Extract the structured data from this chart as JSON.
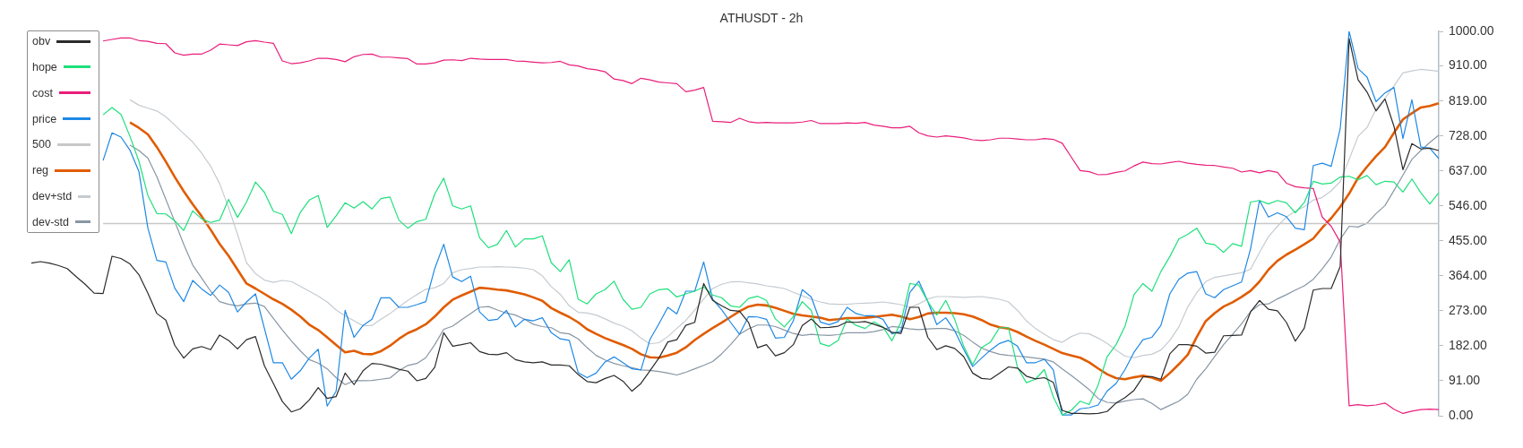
{
  "chart_data": {
    "type": "line",
    "title": "ATHUSDT - 2h",
    "categories": [
      null,
      null,
      null,
      null,
      null,
      null,
      null,
      null,
      null,
      null,
      null,
      null,
      null,
      null,
      null,
      null,
      null,
      null,
      null,
      null,
      null,
      null,
      null,
      null,
      null,
      null,
      null,
      null,
      null,
      null,
      null,
      null,
      null,
      null,
      null,
      null,
      null,
      null,
      null,
      null,
      null,
      null,
      null,
      null,
      null,
      null,
      null,
      null,
      null,
      null,
      null,
      null,
      null,
      null,
      null,
      null,
      null,
      null,
      null,
      null,
      null,
      null,
      null,
      null,
      null,
      null,
      null,
      null,
      null,
      null,
      null,
      null,
      null,
      null,
      null,
      null,
      null,
      null,
      null,
      null,
      null,
      null,
      null,
      null,
      null,
      null,
      null,
      null,
      null,
      null,
      null,
      null,
      null,
      null,
      null,
      null,
      null,
      null,
      null,
      null,
      null,
      null,
      null,
      null,
      null,
      null,
      null,
      null,
      null,
      null,
      null,
      null,
      null,
      null,
      null,
      null,
      null,
      null,
      null,
      null,
      null,
      null,
      null,
      null,
      null,
      null,
      null,
      null,
      null,
      null,
      null,
      null,
      null,
      null,
      null,
      null,
      null,
      null,
      null,
      null,
      null,
      null,
      null,
      null,
      null,
      null,
      null,
      null,
      null,
      null,
      null,
      null,
      null,
      null,
      null,
      null,
      null,
      null
    ],
    "series": [
      {
        "name": "obv",
        "color": "#2b2b2b",
        "values": [
          397,
          401,
          397,
          391,
          383,
          362,
          342,
          319,
          318,
          415,
          409,
          395,
          367,
          319,
          266,
          249,
          183,
          150,
          174,
          180,
          172,
          210,
          196,
          174,
          198,
          206,
          130,
          84,
          37,
          10,
          18,
          41,
          73,
          45,
          50,
          111,
          81,
          117,
          136,
          134,
          128,
          121,
          116,
          91,
          97,
          126,
          216,
          181,
          185,
          190,
          167,
          160,
          159,
          164,
          146,
          140,
          138,
          140,
          132,
          132,
          130,
          107,
          89,
          86,
          97,
          105,
          90,
          64,
          84,
          117,
          150,
          192,
          198,
          235,
          243,
          344,
          300,
          286,
          274,
          272,
          243,
          177,
          185,
          156,
          164,
          185,
          235,
          252,
          229,
          230,
          233,
          244,
          243,
          245,
          238,
          230,
          217,
          214,
          282,
          282,
          204,
          172,
          182,
          175,
          154,
          111,
          97,
          95,
          111,
          127,
          124,
          103,
          96,
          99,
          87,
          14,
          6,
          6,
          5,
          6,
          11,
          33,
          47,
          66,
          101,
          102,
          95,
          161,
          185,
          185,
          181,
          163,
          165,
          208,
          209,
          210,
          270,
          300,
          277,
          273,
          243,
          194,
          228,
          327,
          331,
          331,
          388,
          981,
          874,
          842,
          793,
          824,
          753,
          640,
          708,
          694,
          696,
          690
        ]
      },
      {
        "name": "hope",
        "color": "#1ee07c",
        "values": [
          null,
          null,
          null,
          null,
          null,
          null,
          null,
          null,
          783,
          802,
          784,
          727,
          662,
          573,
          526,
          525,
          507,
          482,
          533,
          512,
          503,
          509,
          563,
          516,
          556,
          608,
          581,
          532,
          524,
          474,
          529,
          561,
          573,
          490,
          520,
          554,
          540,
          557,
          538,
          565,
          569,
          509,
          488,
          505,
          511,
          577,
          618,
          546,
          538,
          546,
          463,
          437,
          446,
          482,
          439,
          460,
          460,
          468,
          398,
          375,
          406,
          303,
          291,
          317,
          328,
          350,
          303,
          277,
          282,
          317,
          328,
          330,
          309,
          317,
          324,
          335,
          314,
          307,
          286,
          282,
          305,
          311,
          300,
          252,
          231,
          258,
          297,
          274,
          188,
          181,
          196,
          252,
          235,
          227,
          244,
          231,
          195,
          243,
          344,
          340,
          297,
          262,
          300,
          251,
          181,
          133,
          177,
          192,
          229,
          229,
          126,
          86,
          95,
          120,
          49,
          2,
          14,
          38,
          29,
          80,
          153,
          185,
          233,
          315,
          344,
          324,
          375,
          414,
          460,
          472,
          488,
          449,
          445,
          425,
          448,
          441,
          556,
          560,
          551,
          560,
          554,
          528,
          555,
          610,
          603,
          605,
          621,
          623,
          614,
          625,
          601,
          610,
          608,
          582,
          616,
          580,
          551,
          580
        ]
      },
      {
        "name": "cost",
        "color": "#e91e7a",
        "values": [
          null,
          null,
          null,
          null,
          null,
          null,
          null,
          null,
          975,
          979,
          983,
          983,
          976,
          974,
          969,
          968,
          944,
          938,
          941,
          941,
          951,
          967,
          965,
          963,
          973,
          976,
          972,
          969,
          923,
          916,
          918,
          923,
          930,
          930,
          927,
          921,
          934,
          940,
          941,
          933,
          933,
          931,
          929,
          915,
          915,
          918,
          925,
          926,
          924,
          930,
          928,
          927,
          927,
          927,
          923,
          922,
          920,
          918,
          919,
          922,
          913,
          910,
          903,
          900,
          895,
          876,
          872,
          864,
          878,
          874,
          868,
          866,
          864,
          843,
          847,
          854,
          766,
          765,
          763,
          774,
          765,
          762,
          763,
          762,
          762,
          762,
          764,
          768,
          760,
          760,
          760,
          762,
          761,
          763,
          756,
          753,
          749,
          749,
          753,
          736,
          728,
          725,
          728,
          726,
          723,
          718,
          716,
          718,
          722,
          722,
          720,
          718,
          718,
          721,
          719,
          709,
          673,
          638,
          635,
          627,
          628,
          633,
          637,
          650,
          660,
          656,
          655,
          659,
          662,
          657,
          654,
          652,
          651,
          647,
          644,
          634,
          638,
          632,
          638,
          633,
          605,
          596,
          593,
          591,
          517,
          493,
          452,
          26,
          29,
          26,
          28,
          33,
          17,
          6,
          12,
          16,
          17,
          16
        ]
      },
      {
        "name": "price",
        "color": "#1e88e5",
        "values": [
          null,
          null,
          null,
          null,
          null,
          null,
          null,
          null,
          664,
          736,
          725,
          691,
          635,
          488,
          404,
          400,
          332,
          297,
          352,
          330,
          313,
          340,
          321,
          270,
          296,
          317,
          227,
          138,
          138,
          95,
          117,
          150,
          173,
          25,
          64,
          274,
          204,
          235,
          251,
          307,
          307,
          282,
          282,
          289,
          297,
          383,
          446,
          361,
          349,
          363,
          270,
          248,
          251,
          274,
          231,
          251,
          247,
          255,
          216,
          200,
          196,
          112,
          99,
          111,
          140,
          153,
          138,
          122,
          119,
          198,
          239,
          282,
          265,
          324,
          324,
          400,
          303,
          276,
          243,
          212,
          258,
          257,
          251,
          202,
          204,
          247,
          328,
          309,
          244,
          237,
          245,
          282,
          266,
          260,
          260,
          251,
          213,
          220,
          321,
          350,
          297,
          237,
          255,
          221,
          173,
          128,
          150,
          171,
          188,
          196,
          181,
          138,
          138,
          147,
          119,
          2,
          2,
          18,
          21,
          28,
          64,
          84,
          120,
          165,
          198,
          204,
          235,
          317,
          355,
          371,
          375,
          317,
          307,
          328,
          338,
          348,
          434,
          560,
          517,
          528,
          518,
          488,
          484,
          651,
          657,
          649,
          746,
          1000,
          903,
          881,
          817,
          840,
          854,
          721,
          822,
          699,
          696,
          669
        ]
      },
      {
        "name": "500",
        "color": "#c8c8c8",
        "values": [
          null,
          null,
          null,
          null,
          null,
          null,
          null,
          null,
          500,
          500,
          500,
          500,
          500,
          500,
          500,
          500,
          500,
          500,
          500,
          500,
          500,
          500,
          500,
          500,
          500,
          500,
          500,
          500,
          500,
          500,
          500,
          500,
          500,
          500,
          500,
          500,
          500,
          500,
          500,
          500,
          500,
          500,
          500,
          500,
          500,
          500,
          500,
          500,
          500,
          500,
          500,
          500,
          500,
          500,
          500,
          500,
          500,
          500,
          500,
          500,
          500,
          500,
          500,
          500,
          500,
          500,
          500,
          500,
          500,
          500,
          500,
          500,
          500,
          500,
          500,
          500,
          500,
          500,
          500,
          500,
          500,
          500,
          500,
          500,
          500,
          500,
          500,
          500,
          500,
          500,
          500,
          500,
          500,
          500,
          500,
          500,
          500,
          500,
          500,
          500,
          500,
          500,
          500,
          500,
          500,
          500,
          500,
          500,
          500,
          500,
          500,
          500,
          500,
          500,
          500,
          500,
          500,
          500,
          500,
          500,
          500,
          500,
          500,
          500,
          500,
          500,
          500,
          500,
          500,
          500,
          500,
          500,
          500,
          500,
          500,
          500,
          500,
          500,
          500,
          500,
          500,
          500,
          500,
          500,
          500,
          500,
          500,
          500,
          500,
          500,
          500,
          500,
          500,
          500,
          500,
          500,
          500,
          500
        ]
      },
      {
        "name": "reg",
        "color": "#e05c00",
        "values": [
          null,
          null,
          null,
          null,
          null,
          null,
          null,
          null,
          null,
          null,
          null,
          763,
          749,
          732,
          699,
          661,
          621,
          584,
          550,
          519,
          484,
          447,
          416,
          380,
          344,
          331,
          317,
          303,
          291,
          276,
          258,
          237,
          223,
          204,
          184,
          165,
          169,
          161,
          160,
          168,
          182,
          200,
          215,
          225,
          238,
          258,
          282,
          302,
          313,
          323,
          333,
          331,
          328,
          326,
          321,
          316,
          308,
          299,
          280,
          268,
          257,
          243,
          225,
          213,
          202,
          193,
          184,
          174,
          160,
          152,
          151,
          157,
          164,
          178,
          197,
          213,
          228,
          242,
          257,
          272,
          284,
          289,
          287,
          281,
          273,
          265,
          261,
          258,
          255,
          249,
          251,
          254,
          254,
          255,
          257,
          260,
          263,
          258,
          251,
          257,
          266,
          268,
          268,
          267,
          264,
          258,
          249,
          237,
          230,
          227,
          218,
          206,
          195,
          185,
          174,
          163,
          157,
          151,
          139,
          123,
          108,
          98,
          95,
          100,
          104,
          99,
          91,
          111,
          134,
          159,
          205,
          246,
          267,
          284,
          295,
          309,
          325,
          349,
          380,
          403,
          419,
          432,
          446,
          461,
          489,
          514,
          543,
          578,
          619,
          648,
          675,
          699,
          736,
          771,
          787,
          802,
          806,
          813
        ]
      },
      {
        "name": "dev+std",
        "color": "#c5cbd0",
        "values": [
          null,
          null,
          null,
          null,
          null,
          null,
          null,
          null,
          null,
          null,
          null,
          822,
          808,
          800,
          793,
          778,
          756,
          734,
          712,
          683,
          649,
          604,
          541,
          472,
          398,
          370,
          353,
          347,
          352,
          349,
          337,
          324,
          311,
          296,
          275,
          260,
          247,
          234,
          235,
          251,
          266,
          283,
          300,
          315,
          329,
          333,
          344,
          372,
          380,
          383,
          387,
          387,
          388,
          387,
          386,
          384,
          380,
          364,
          336,
          316,
          286,
          269,
          267,
          262,
          252,
          241,
          233,
          221,
          202,
          187,
          190,
          206,
          227,
          248,
          275,
          304,
          331,
          342,
          348,
          349,
          346,
          343,
          338,
          335,
          331,
          321,
          312,
          303,
          296,
          291,
          290,
          290,
          292,
          293,
          294,
          296,
          293,
          289,
          282,
          291,
          304,
          310,
          310,
          309,
          308,
          309,
          310,
          307,
          303,
          296,
          274,
          247,
          227,
          212,
          198,
          191,
          206,
          215,
          213,
          202,
          188,
          171,
          155,
          151,
          157,
          160,
          171,
          196,
          231,
          283,
          320,
          349,
          360,
          364,
          368,
          372,
          381,
          425,
          466,
          493,
          517,
          532,
          544,
          561,
          568,
          585,
          609,
          667,
          727,
          750,
          798,
          826,
          858,
          892,
          897,
          901,
          899,
          896
        ]
      },
      {
        "name": "dev-std",
        "color": "#8896a4",
        "values": [
          null,
          null,
          null,
          null,
          null,
          null,
          null,
          null,
          null,
          null,
          null,
          704,
          690,
          670,
          622,
          563,
          505,
          446,
          392,
          358,
          324,
          297,
          290,
          286,
          291,
          293,
          284,
          253,
          223,
          195,
          169,
          146,
          137,
          122,
          99,
          81,
          91,
          91,
          92,
          95,
          98,
          117,
          131,
          136,
          151,
          185,
          225,
          233,
          250,
          266,
          282,
          284,
          275,
          267,
          262,
          251,
          238,
          232,
          229,
          216,
          213,
          200,
          177,
          157,
          145,
          136,
          130,
          125,
          119,
          118,
          115,
          111,
          106,
          113,
          122,
          131,
          141,
          161,
          185,
          212,
          226,
          236,
          236,
          232,
          223,
          214,
          209,
          212,
          210,
          209,
          211,
          216,
          216,
          216,
          219,
          224,
          232,
          230,
          226,
          224,
          226,
          227,
          227,
          221,
          209,
          192,
          176,
          167,
          160,
          157,
          155,
          153,
          150,
          147,
          140,
          122,
          105,
          87,
          68,
          45,
          35,
          33,
          38,
          42,
          44,
          32,
          16,
          27,
          38,
          56,
          95,
          122,
          154,
          185,
          212,
          239,
          271,
          289,
          291,
          304,
          315,
          327,
          338,
          355,
          382,
          413,
          459,
          493,
          491,
          501,
          526,
          547,
          586,
          626,
          667,
          690,
          711,
          730
        ]
      }
    ],
    "ylim": [
      0,
      1000
    ],
    "yticks": [
      {
        "value": 0,
        "label": "0.00"
      },
      {
        "value": 91,
        "label": "91.00"
      },
      {
        "value": 182,
        "label": "182.00"
      },
      {
        "value": 273,
        "label": "273.00"
      },
      {
        "value": 364,
        "label": "364.00"
      },
      {
        "value": 455,
        "label": "455.00"
      },
      {
        "value": 546,
        "label": "546.00"
      },
      {
        "value": 637,
        "label": "637.00"
      },
      {
        "value": 728,
        "label": "728.00"
      },
      {
        "value": 819,
        "label": "819.00"
      },
      {
        "value": 910,
        "label": "910.00"
      },
      {
        "value": 1000,
        "label": "1000.00"
      }
    ],
    "grid": false,
    "legend": "top left",
    "tick_labels": "y",
    "marker": "none"
  }
}
